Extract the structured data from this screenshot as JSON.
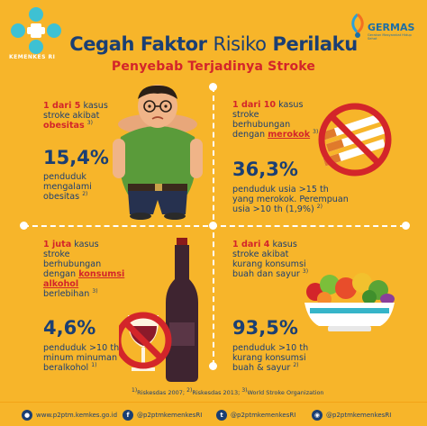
{
  "header": {
    "logo_text": "KEMENKES RI",
    "germas_title": "GERMAS",
    "germas_sub": "Gerakan Masyarakat Hidup Sehat",
    "title_bold_1": "Cegah Faktor",
    "title_normal": "Risiko",
    "title_bold_2": "Perilaku",
    "subtitle": "Penyebab Terjadinya Stroke"
  },
  "q1": {
    "intro_red": "1 dari 5",
    "intro_rest": "kasus",
    "line2": "stroke akibat",
    "line3_red": "obesitas",
    "line3_sup": "3)",
    "stat": "15,4%",
    "desc1": "penduduk",
    "desc2": "mengalami",
    "desc3": "obesitas",
    "desc3_sup": "2)"
  },
  "q2": {
    "intro_red": "1 dari 10",
    "intro_rest": "kasus",
    "line2": "stroke",
    "line3": "berhubungan",
    "line4_pre": "dengan",
    "line4_red": "merokok",
    "line4_sup": "3)",
    "stat": "36,3%",
    "desc1": "penduduk usia >15 th",
    "desc2": "yang merokok. Perempuan",
    "desc3": "usia >10 th (1,9%)",
    "desc3_sup": "2)"
  },
  "q3": {
    "intro_red": "1 juta",
    "intro_rest": "kasus",
    "line2": "stroke",
    "line3": "berhubungan",
    "line4_pre": "dengan",
    "line4_red": "konsumsi",
    "line5_red": "alkohol",
    "line6": "berlebihan",
    "line6_sup": "3)",
    "stat": "4,6%",
    "desc1": "penduduk >10 th",
    "desc2": "minum minuman",
    "desc3": "beralkohol",
    "desc3_sup": "1)"
  },
  "q4": {
    "intro_red": "1 dari 4",
    "intro_rest": "kasus",
    "line2": "stroke akibat",
    "line3": "kurang konsumsi",
    "line4": "buah dan sayur",
    "line4_sup": "3)",
    "stat": "93,5%",
    "desc1": "penduduk >10 th",
    "desc2": "kurang konsumsi",
    "desc3": "buah & sayur",
    "desc3_sup": "2)"
  },
  "footnote": {
    "s1": "1)",
    "t1": "Riskesdas 2007;",
    "s2": "2)",
    "t2": "Riskesdas 2013;",
    "s3": "3)",
    "t3": "World Stroke Organization"
  },
  "footer": {
    "web_icon": "globe-icon",
    "web": "www.p2ptm.kemkes.go.id",
    "fb_icon": "facebook-icon",
    "fb": "@p2ptmkemenkesRI",
    "tw_icon": "twitter-icon",
    "tw": "@p2ptmkemenkesRI",
    "ig_icon": "instagram-icon",
    "ig": "@p2ptmkemenkesRI"
  },
  "colors": {
    "background": "#f7b52a",
    "navy": "#1b3f73",
    "red": "#d3252a"
  }
}
